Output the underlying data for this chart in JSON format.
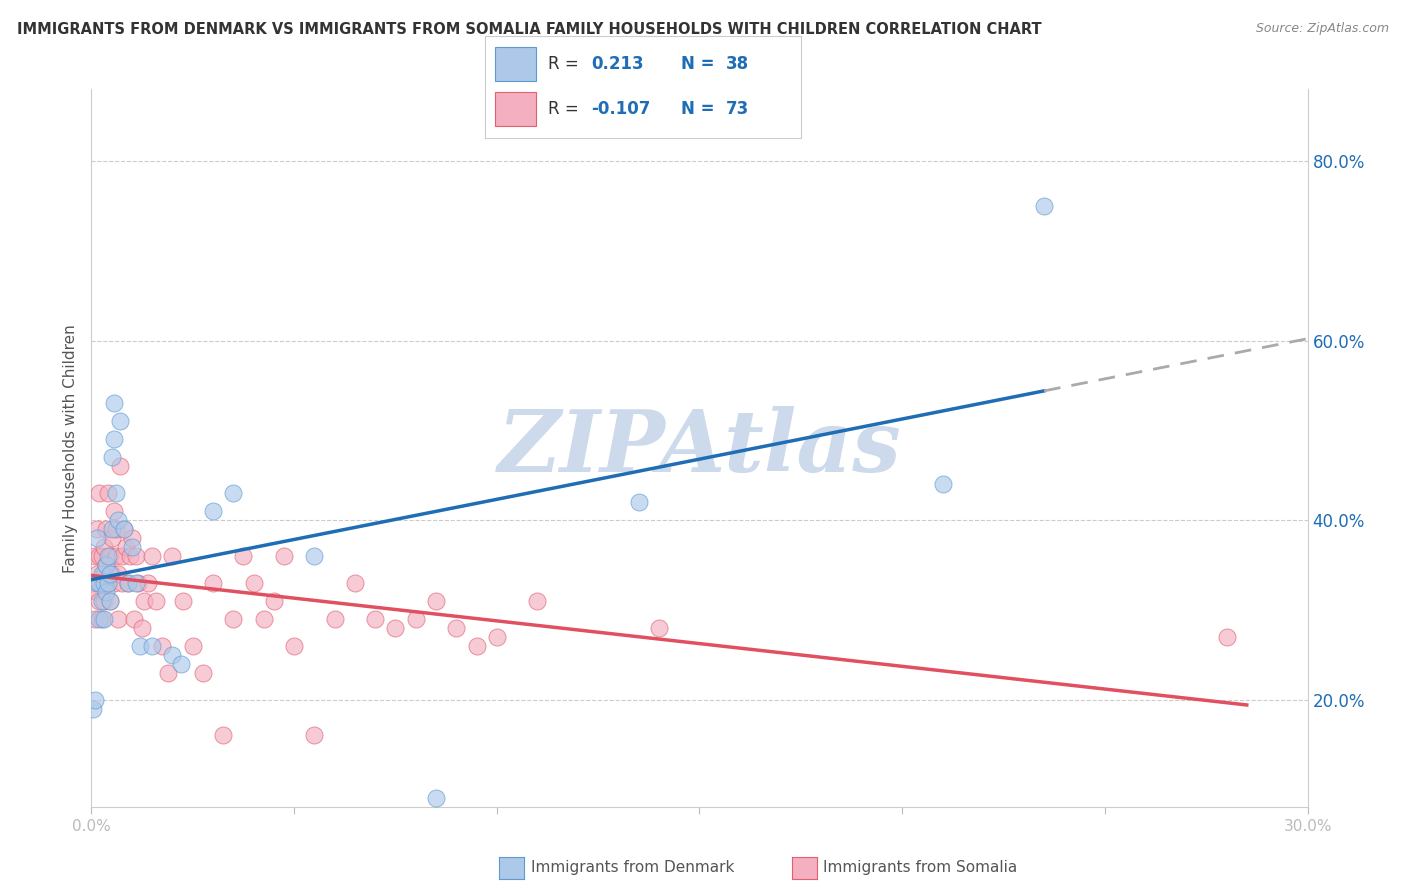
{
  "title": "IMMIGRANTS FROM DENMARK VS IMMIGRANTS FROM SOMALIA FAMILY HOUSEHOLDS WITH CHILDREN CORRELATION CHART",
  "source": "Source: ZipAtlas.com",
  "ylabel": "Family Households with Children",
  "xlim": [
    0.0,
    30.0
  ],
  "ylim": [
    8.0,
    88.0
  ],
  "yticks": [
    20,
    40,
    60,
    80
  ],
  "ytick_right_labels": [
    "20.0%",
    "40.0%",
    "60.0%",
    "80.0%"
  ],
  "xticks": [
    0,
    5,
    10,
    15,
    20,
    25,
    30
  ],
  "xtick_labels": [
    "0.0%",
    "",
    "",
    "",
    "",
    "",
    "30.0%"
  ],
  "legend_label_denmark": "Immigrants from Denmark",
  "legend_label_somalia": "Immigrants from Somalia",
  "R_denmark": "0.213",
  "N_denmark": "38",
  "R_somalia": "-0.107",
  "N_somalia": "73",
  "color_denmark_fill": "#adc8e8",
  "color_denmark_edge": "#5b9bd5",
  "color_somalia_fill": "#f4b0c0",
  "color_somalia_edge": "#e06070",
  "color_trend_denmark": "#1f6db5",
  "color_trend_somalia": "#e05060",
  "color_dashed_ext": "#aaaaaa",
  "color_text_blue": "#1f6db5",
  "watermark": "ZIPAtlas",
  "watermark_color": "#ccdaec",
  "denmark_x": [
    0.05,
    0.1,
    0.15,
    0.15,
    0.2,
    0.2,
    0.25,
    0.25,
    0.3,
    0.3,
    0.35,
    0.35,
    0.4,
    0.4,
    0.45,
    0.45,
    0.5,
    0.5,
    0.55,
    0.55,
    0.6,
    0.65,
    0.7,
    0.8,
    0.9,
    1.0,
    1.1,
    1.2,
    1.5,
    2.0,
    2.2,
    3.0,
    3.5,
    5.5,
    8.5,
    13.5,
    21.0,
    23.5
  ],
  "denmark_y": [
    19,
    20,
    33,
    38,
    33,
    29,
    34,
    31,
    29,
    33,
    35,
    32,
    36,
    33,
    31,
    34,
    47,
    39,
    49,
    53,
    43,
    40,
    51,
    39,
    33,
    37,
    33,
    26,
    26,
    25,
    24,
    41,
    43,
    36,
    9,
    42,
    44,
    75
  ],
  "somalia_x": [
    0.05,
    0.1,
    0.1,
    0.15,
    0.15,
    0.15,
    0.2,
    0.2,
    0.2,
    0.25,
    0.25,
    0.25,
    0.3,
    0.3,
    0.3,
    0.35,
    0.35,
    0.4,
    0.4,
    0.45,
    0.45,
    0.5,
    0.5,
    0.55,
    0.55,
    0.6,
    0.6,
    0.65,
    0.65,
    0.7,
    0.75,
    0.75,
    0.8,
    0.85,
    0.9,
    0.95,
    1.0,
    1.05,
    1.1,
    1.15,
    1.25,
    1.3,
    1.4,
    1.5,
    1.6,
    1.75,
    1.9,
    2.0,
    2.25,
    2.5,
    2.75,
    3.0,
    3.25,
    3.5,
    3.75,
    4.0,
    4.25,
    4.5,
    4.75,
    5.0,
    5.5,
    6.0,
    6.5,
    7.0,
    7.5,
    8.0,
    8.5,
    9.0,
    9.5,
    10.0,
    11.0,
    14.0,
    28.0
  ],
  "somalia_y": [
    33,
    29,
    36,
    34,
    39,
    32,
    36,
    31,
    43,
    33,
    36,
    29,
    34,
    37,
    31,
    35,
    39,
    33,
    43,
    36,
    31,
    34,
    38,
    33,
    41,
    36,
    39,
    34,
    29,
    46,
    33,
    36,
    39,
    37,
    33,
    36,
    38,
    29,
    36,
    33,
    28,
    31,
    33,
    36,
    31,
    26,
    23,
    36,
    31,
    26,
    23,
    33,
    16,
    29,
    36,
    33,
    29,
    31,
    36,
    26,
    16,
    29,
    33,
    29,
    28,
    29,
    31,
    28,
    26,
    27,
    31,
    28,
    27
  ]
}
